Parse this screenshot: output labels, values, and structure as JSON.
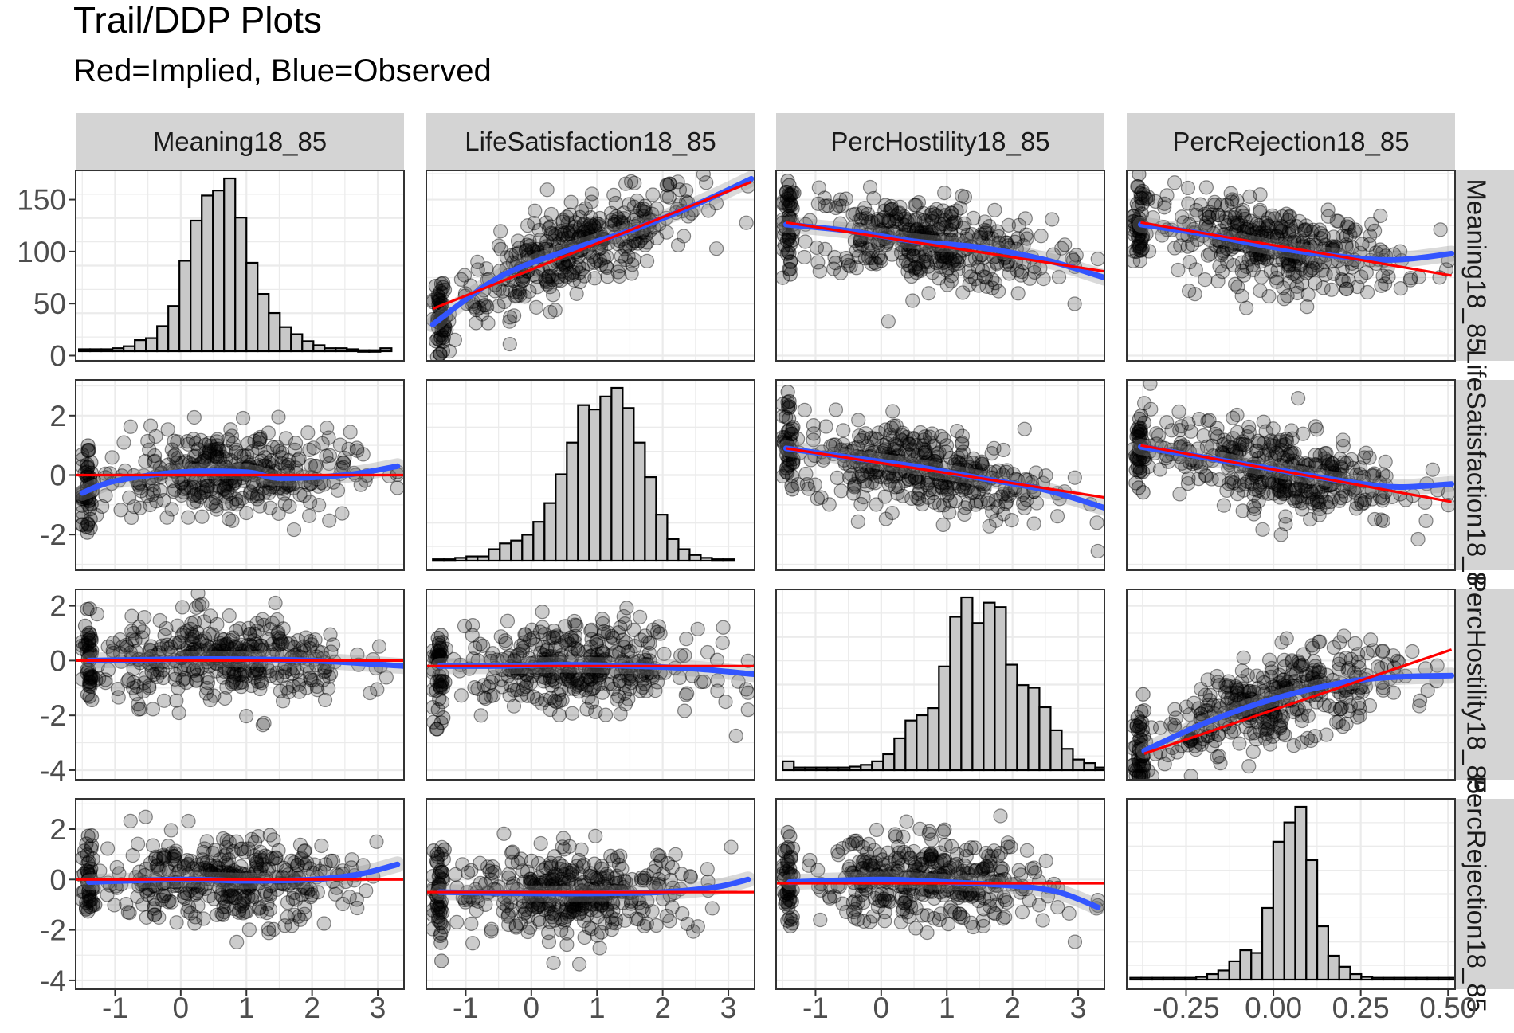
{
  "title": "Trail/DDP Plots",
  "subtitle": "Red=Implied, Blue=Observed",
  "chart_data": {
    "type": "scatter",
    "layout": "4x4 facet matrix; diagonal panels are histograms, off-diagonal panels are scatterplots with fitted lines",
    "legend": "none",
    "colors": {
      "implied": "#ff0000",
      "observed": "#3355ff",
      "points": "#000000",
      "histogram_fill": "#c8c8c8",
      "strip": "#d4d4d4"
    },
    "variables": [
      "Meaning18_85",
      "LifeSatisfaction18_85",
      "PercHostility18_85",
      "PercRejection18_85"
    ],
    "column_strips": [
      "Meaning18_85",
      "LifeSatisfaction18_85",
      "PercHostility18_85",
      "PercRejection18_85"
    ],
    "row_strips": [
      "Meaning18_85",
      "LifeSatisfaction18_85",
      "PercHostility18_85",
      "PercRejection18_85"
    ],
    "grid": true,
    "x_axes": [
      {
        "range": [
          -1.6,
          3.4
        ],
        "ticks": [
          -1,
          0,
          1,
          2,
          3
        ],
        "tick_labels": [
          "-1",
          "0",
          "1",
          "2",
          "3"
        ]
      },
      {
        "range": [
          -1.6,
          3.4
        ],
        "ticks": [
          -1,
          0,
          1,
          2,
          3
        ],
        "tick_labels": [
          "-1",
          "0",
          "1",
          "2",
          "3"
        ]
      },
      {
        "range": [
          -1.6,
          3.4
        ],
        "ticks": [
          -1,
          0,
          1,
          2,
          3
        ],
        "tick_labels": [
          "-1",
          "0",
          "1",
          "2",
          "3"
        ]
      },
      {
        "range": [
          -0.42,
          0.52
        ],
        "ticks": [
          -0.25,
          0.0,
          0.25,
          0.5
        ],
        "tick_labels": [
          "-0.25",
          "0.00",
          "0.25",
          "0.50"
        ]
      }
    ],
    "y_axes": [
      {
        "range": [
          -5,
          178
        ],
        "ticks": [
          0,
          50,
          100,
          150
        ],
        "tick_labels": [
          "0",
          "50",
          "100",
          "150"
        ]
      },
      {
        "range": [
          -3.2,
          3.2
        ],
        "ticks": [
          -2,
          0,
          2
        ],
        "tick_labels": [
          "-2",
          "0",
          "2"
        ]
      },
      {
        "range": [
          -4.35,
          2.6
        ],
        "ticks": [
          -4,
          -2,
          0,
          2
        ],
        "tick_labels": [
          "-4",
          "-2",
          "0",
          "2"
        ]
      },
      {
        "range": [
          -4.35,
          3.2
        ],
        "ticks": [
          -4,
          -2,
          0,
          2
        ],
        "tick_labels": [
          "-4",
          "-2",
          "0",
          "2"
        ]
      }
    ],
    "histograms": [
      {
        "panel": "Meaning18_85",
        "bin_start": -1.55,
        "bin_width": 0.17,
        "counts": [
          2,
          2,
          2,
          3,
          5,
          11,
          13,
          25,
          45,
          90,
          130,
          155,
          160,
          172,
          133,
          88,
          57,
          38,
          24,
          17,
          10,
          6,
          3,
          3,
          2,
          1,
          1,
          3
        ]
      },
      {
        "panel": "LifeSatisfaction18_85",
        "bin_start": -1.5,
        "bin_width": 0.17,
        "counts": [
          1,
          1,
          2,
          3,
          3,
          8,
          12,
          14,
          18,
          27,
          40,
          60,
          82,
          108,
          105,
          114,
          120,
          106,
          82,
          58,
          32,
          15,
          8,
          4,
          2,
          1,
          1
        ]
      },
      {
        "panel": "PercHostility18_85",
        "bin_start": -1.5,
        "bin_width": 0.17,
        "counts": [
          10,
          3,
          3,
          3,
          3,
          3,
          4,
          6,
          10,
          18,
          36,
          56,
          62,
          70,
          117,
          173,
          195,
          166,
          189,
          184,
          119,
          96,
          93,
          71,
          45,
          24,
          12,
          8,
          3,
          3
        ]
      },
      {
        "panel": "PercRejection18_85",
        "bin_start": -0.41,
        "bin_width": 0.0315,
        "counts": [
          2,
          2,
          2,
          2,
          2,
          2,
          3,
          6,
          10,
          20,
          32,
          29,
          78,
          150,
          171,
          188,
          130,
          58,
          26,
          14,
          6,
          3,
          2,
          2,
          2,
          2,
          2,
          2,
          2,
          2
        ]
      }
    ],
    "implied_lines": [
      {
        "row": 0,
        "col": 1,
        "x": [
          -1.5,
          3.35
        ],
        "y": [
          45,
          167
        ]
      },
      {
        "row": 0,
        "col": 2,
        "x": [
          -1.45,
          3.4
        ],
        "y": [
          128,
          81
        ]
      },
      {
        "row": 0,
        "col": 3,
        "x": [
          -0.38,
          0.51
        ],
        "y": [
          128,
          77
        ]
      },
      {
        "row": 1,
        "col": 0,
        "x": [
          -1.6,
          3.4
        ],
        "y": [
          0,
          0
        ]
      },
      {
        "row": 1,
        "col": 2,
        "x": [
          -1.45,
          3.4
        ],
        "y": [
          0.9,
          -0.75
        ]
      },
      {
        "row": 1,
        "col": 3,
        "x": [
          -0.38,
          0.51
        ],
        "y": [
          1.0,
          -0.9
        ]
      },
      {
        "row": 2,
        "col": 0,
        "x": [
          -1.6,
          3.4
        ],
        "y": [
          0,
          0
        ]
      },
      {
        "row": 2,
        "col": 1,
        "x": [
          -1.6,
          3.4
        ],
        "y": [
          -0.2,
          -0.2
        ]
      },
      {
        "row": 2,
        "col": 3,
        "x": [
          -0.37,
          0.51
        ],
        "y": [
          -3.4,
          0.4
        ]
      },
      {
        "row": 3,
        "col": 0,
        "x": [
          -1.6,
          3.4
        ],
        "y": [
          0,
          0
        ]
      },
      {
        "row": 3,
        "col": 1,
        "x": [
          -1.6,
          3.4
        ],
        "y": [
          -0.5,
          -0.5
        ]
      },
      {
        "row": 3,
        "col": 2,
        "x": [
          -1.6,
          3.4
        ],
        "y": [
          -0.15,
          -0.15
        ]
      }
    ],
    "observed_lines": [
      {
        "row": 0,
        "col": 1,
        "x": [
          -1.5,
          -0.5,
          0.5,
          1.5,
          2.5,
          3.35
        ],
        "y": [
          30,
          75,
          100,
          120,
          145,
          170
        ]
      },
      {
        "row": 0,
        "col": 2,
        "x": [
          -1.45,
          -0.5,
          0.5,
          1.5,
          2.5,
          3.4
        ],
        "y": [
          126,
          120,
          110,
          104,
          92,
          75
        ]
      },
      {
        "row": 0,
        "col": 3,
        "x": [
          -0.38,
          -0.2,
          0.0,
          0.2,
          0.35,
          0.51
        ],
        "y": [
          126,
          117,
          104,
          95,
          92,
          98
        ]
      },
      {
        "row": 1,
        "col": 0,
        "x": [
          -1.5,
          -1.0,
          0.0,
          1.0,
          1.5,
          2.5,
          3.3
        ],
        "y": [
          -0.6,
          -0.2,
          0.1,
          0.1,
          -0.1,
          0.0,
          0.3
        ]
      },
      {
        "row": 1,
        "col": 2,
        "x": [
          -1.45,
          -0.5,
          0.5,
          1.5,
          2.5,
          3.4
        ],
        "y": [
          0.9,
          0.6,
          0.3,
          -0.1,
          -0.5,
          -1.1
        ]
      },
      {
        "row": 1,
        "col": 3,
        "x": [
          -0.38,
          -0.2,
          0.0,
          0.2,
          0.35,
          0.51
        ],
        "y": [
          0.95,
          0.6,
          0.2,
          -0.2,
          -0.4,
          -0.3
        ]
      },
      {
        "row": 2,
        "col": 0,
        "x": [
          -1.4,
          0.0,
          1.0,
          2.0,
          3.4
        ],
        "y": [
          0.0,
          0.05,
          0.05,
          0.0,
          -0.2
        ]
      },
      {
        "row": 2,
        "col": 1,
        "x": [
          -1.4,
          -0.5,
          0.5,
          1.5,
          2.5,
          3.4
        ],
        "y": [
          -0.2,
          -0.2,
          -0.15,
          -0.2,
          -0.3,
          -0.5
        ]
      },
      {
        "row": 2,
        "col": 3,
        "x": [
          -0.37,
          -0.2,
          0.0,
          0.2,
          0.35,
          0.51
        ],
        "y": [
          -3.3,
          -2.3,
          -1.4,
          -0.8,
          -0.6,
          -0.55
        ]
      },
      {
        "row": 3,
        "col": 0,
        "x": [
          -1.4,
          0.0,
          1.0,
          2.0,
          2.7,
          3.3
        ],
        "y": [
          -0.1,
          0.0,
          -0.05,
          0.0,
          0.2,
          0.6
        ]
      },
      {
        "row": 3,
        "col": 1,
        "x": [
          -1.4,
          0.0,
          1.0,
          2.0,
          2.8,
          3.3
        ],
        "y": [
          -0.5,
          -0.55,
          -0.55,
          -0.5,
          -0.3,
          0.0
        ]
      },
      {
        "row": 3,
        "col": 2,
        "x": [
          -1.4,
          0.0,
          1.0,
          2.0,
          2.7,
          3.3
        ],
        "y": [
          -0.1,
          0.0,
          -0.1,
          -0.25,
          -0.5,
          -1.1
        ]
      }
    ]
  }
}
